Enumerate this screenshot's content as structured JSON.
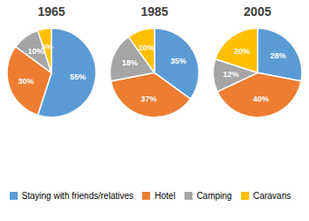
{
  "chart_data": [
    {
      "type": "pie",
      "title": "1965",
      "categories": [
        "Staying with friends/relatives",
        "Hotel",
        "Camping",
        "Caravans"
      ],
      "values": [
        55,
        30,
        10,
        5
      ],
      "value_labels": [
        "55%",
        "30%",
        "10%",
        "5%"
      ],
      "colors": [
        "#5b9bd5",
        "#ed7d31",
        "#a5a5a5",
        "#ffc000"
      ],
      "data_labels": true,
      "legend": "bottom"
    },
    {
      "type": "pie",
      "title": "1985",
      "categories": [
        "Staying with friends/relatives",
        "Hotel",
        "Camping",
        "Caravans"
      ],
      "values": [
        35,
        37,
        18,
        10
      ],
      "value_labels": [
        "35%",
        "37%",
        "18%",
        "10%"
      ],
      "colors": [
        "#5b9bd5",
        "#ed7d31",
        "#a5a5a5",
        "#ffc000"
      ],
      "data_labels": true,
      "legend": "bottom"
    },
    {
      "type": "pie",
      "title": "2005",
      "categories": [
        "Staying with friends/relatives",
        "Hotel",
        "Camping",
        "Caravans"
      ],
      "values": [
        28,
        40,
        12,
        20
      ],
      "value_labels": [
        "28%",
        "40%",
        "12%",
        "20%"
      ],
      "colors": [
        "#5b9bd5",
        "#ed7d31",
        "#a5a5a5",
        "#ffc000"
      ],
      "data_labels": true,
      "legend": "bottom"
    }
  ]
}
